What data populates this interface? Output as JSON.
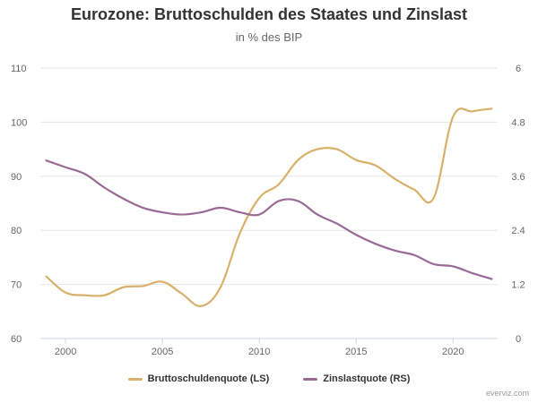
{
  "chart_data": {
    "type": "line",
    "title": "Eurozone: Bruttoschulden des Staates und Zinslast",
    "subtitle": "in % des BIP",
    "xlim": [
      1998.7,
      2022.3
    ],
    "x_ticks": [
      2000,
      2005,
      2010,
      2015,
      2020
    ],
    "y_left": {
      "lim": [
        60,
        110
      ],
      "ticks": [
        60,
        70,
        80,
        90,
        100,
        110
      ]
    },
    "y_right": {
      "lim": [
        0,
        6
      ],
      "ticks": [
        "0",
        "1.2",
        "2.4",
        "3.6",
        "4.8",
        "6"
      ]
    },
    "grid": true,
    "legend_position": "bottom",
    "series": [
      {
        "name": "Bruttoschuldenquote (LS)",
        "axis": "left",
        "color": "#d9b06a",
        "x": [
          1999,
          2000,
          2001,
          2002,
          2003,
          2004,
          2005,
          2006,
          2007,
          2008,
          2009,
          2010,
          2011,
          2012,
          2013,
          2014,
          2015,
          2016,
          2017,
          2018,
          2019,
          2020,
          2021,
          2022
        ],
        "values": [
          71.5,
          68.5,
          68.0,
          68.0,
          69.5,
          69.7,
          70.5,
          68.3,
          66.0,
          69.5,
          79.5,
          86.0,
          88.5,
          93.0,
          95.0,
          95.0,
          93.0,
          92.0,
          89.5,
          87.5,
          86.0,
          101.0,
          102.0,
          102.5
        ]
      },
      {
        "name": "Zinslastquote (RS)",
        "axis": "right",
        "color": "#9a6a96",
        "x": [
          1999,
          2000,
          2001,
          2002,
          2003,
          2004,
          2005,
          2006,
          2007,
          2008,
          2009,
          2010,
          2011,
          2012,
          2013,
          2014,
          2015,
          2016,
          2017,
          2018,
          2019,
          2020,
          2021,
          2022
        ],
        "values": [
          3.95,
          3.8,
          3.65,
          3.35,
          3.1,
          2.9,
          2.8,
          2.75,
          2.8,
          2.9,
          2.8,
          2.75,
          3.05,
          3.05,
          2.75,
          2.55,
          2.3,
          2.1,
          1.95,
          1.85,
          1.65,
          1.6,
          1.45,
          1.32
        ]
      }
    ]
  },
  "credit": "everviz.com"
}
